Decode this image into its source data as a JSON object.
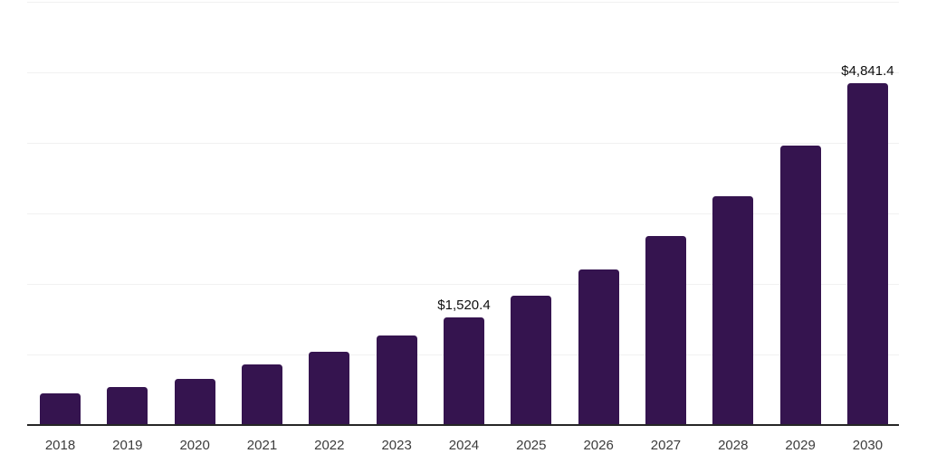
{
  "chart_data": {
    "type": "bar",
    "title": "",
    "xlabel": "",
    "ylabel": "",
    "categories": [
      "2018",
      "2019",
      "2020",
      "2021",
      "2022",
      "2023",
      "2024",
      "2025",
      "2026",
      "2027",
      "2028",
      "2029",
      "2030"
    ],
    "values": [
      445,
      540,
      650,
      865,
      1045,
      1270,
      1520.4,
      1835,
      2200,
      2680,
      3245,
      3960,
      4841.4
    ],
    "data_labels": [
      null,
      null,
      null,
      null,
      null,
      null,
      "$1,520.4",
      null,
      null,
      null,
      null,
      null,
      "$4,841.4"
    ],
    "ylim": [
      0,
      6000
    ],
    "gridline_step": 1000,
    "grid": true,
    "y_axis_labels_visible": false,
    "legend": false,
    "colors": {
      "bar": "#35144f",
      "axis": "#262626",
      "gridline": "#f1f1f1",
      "tick_label": "#3c3c3c",
      "value_label": "#0f0f0f",
      "background": "#ffffff"
    }
  }
}
